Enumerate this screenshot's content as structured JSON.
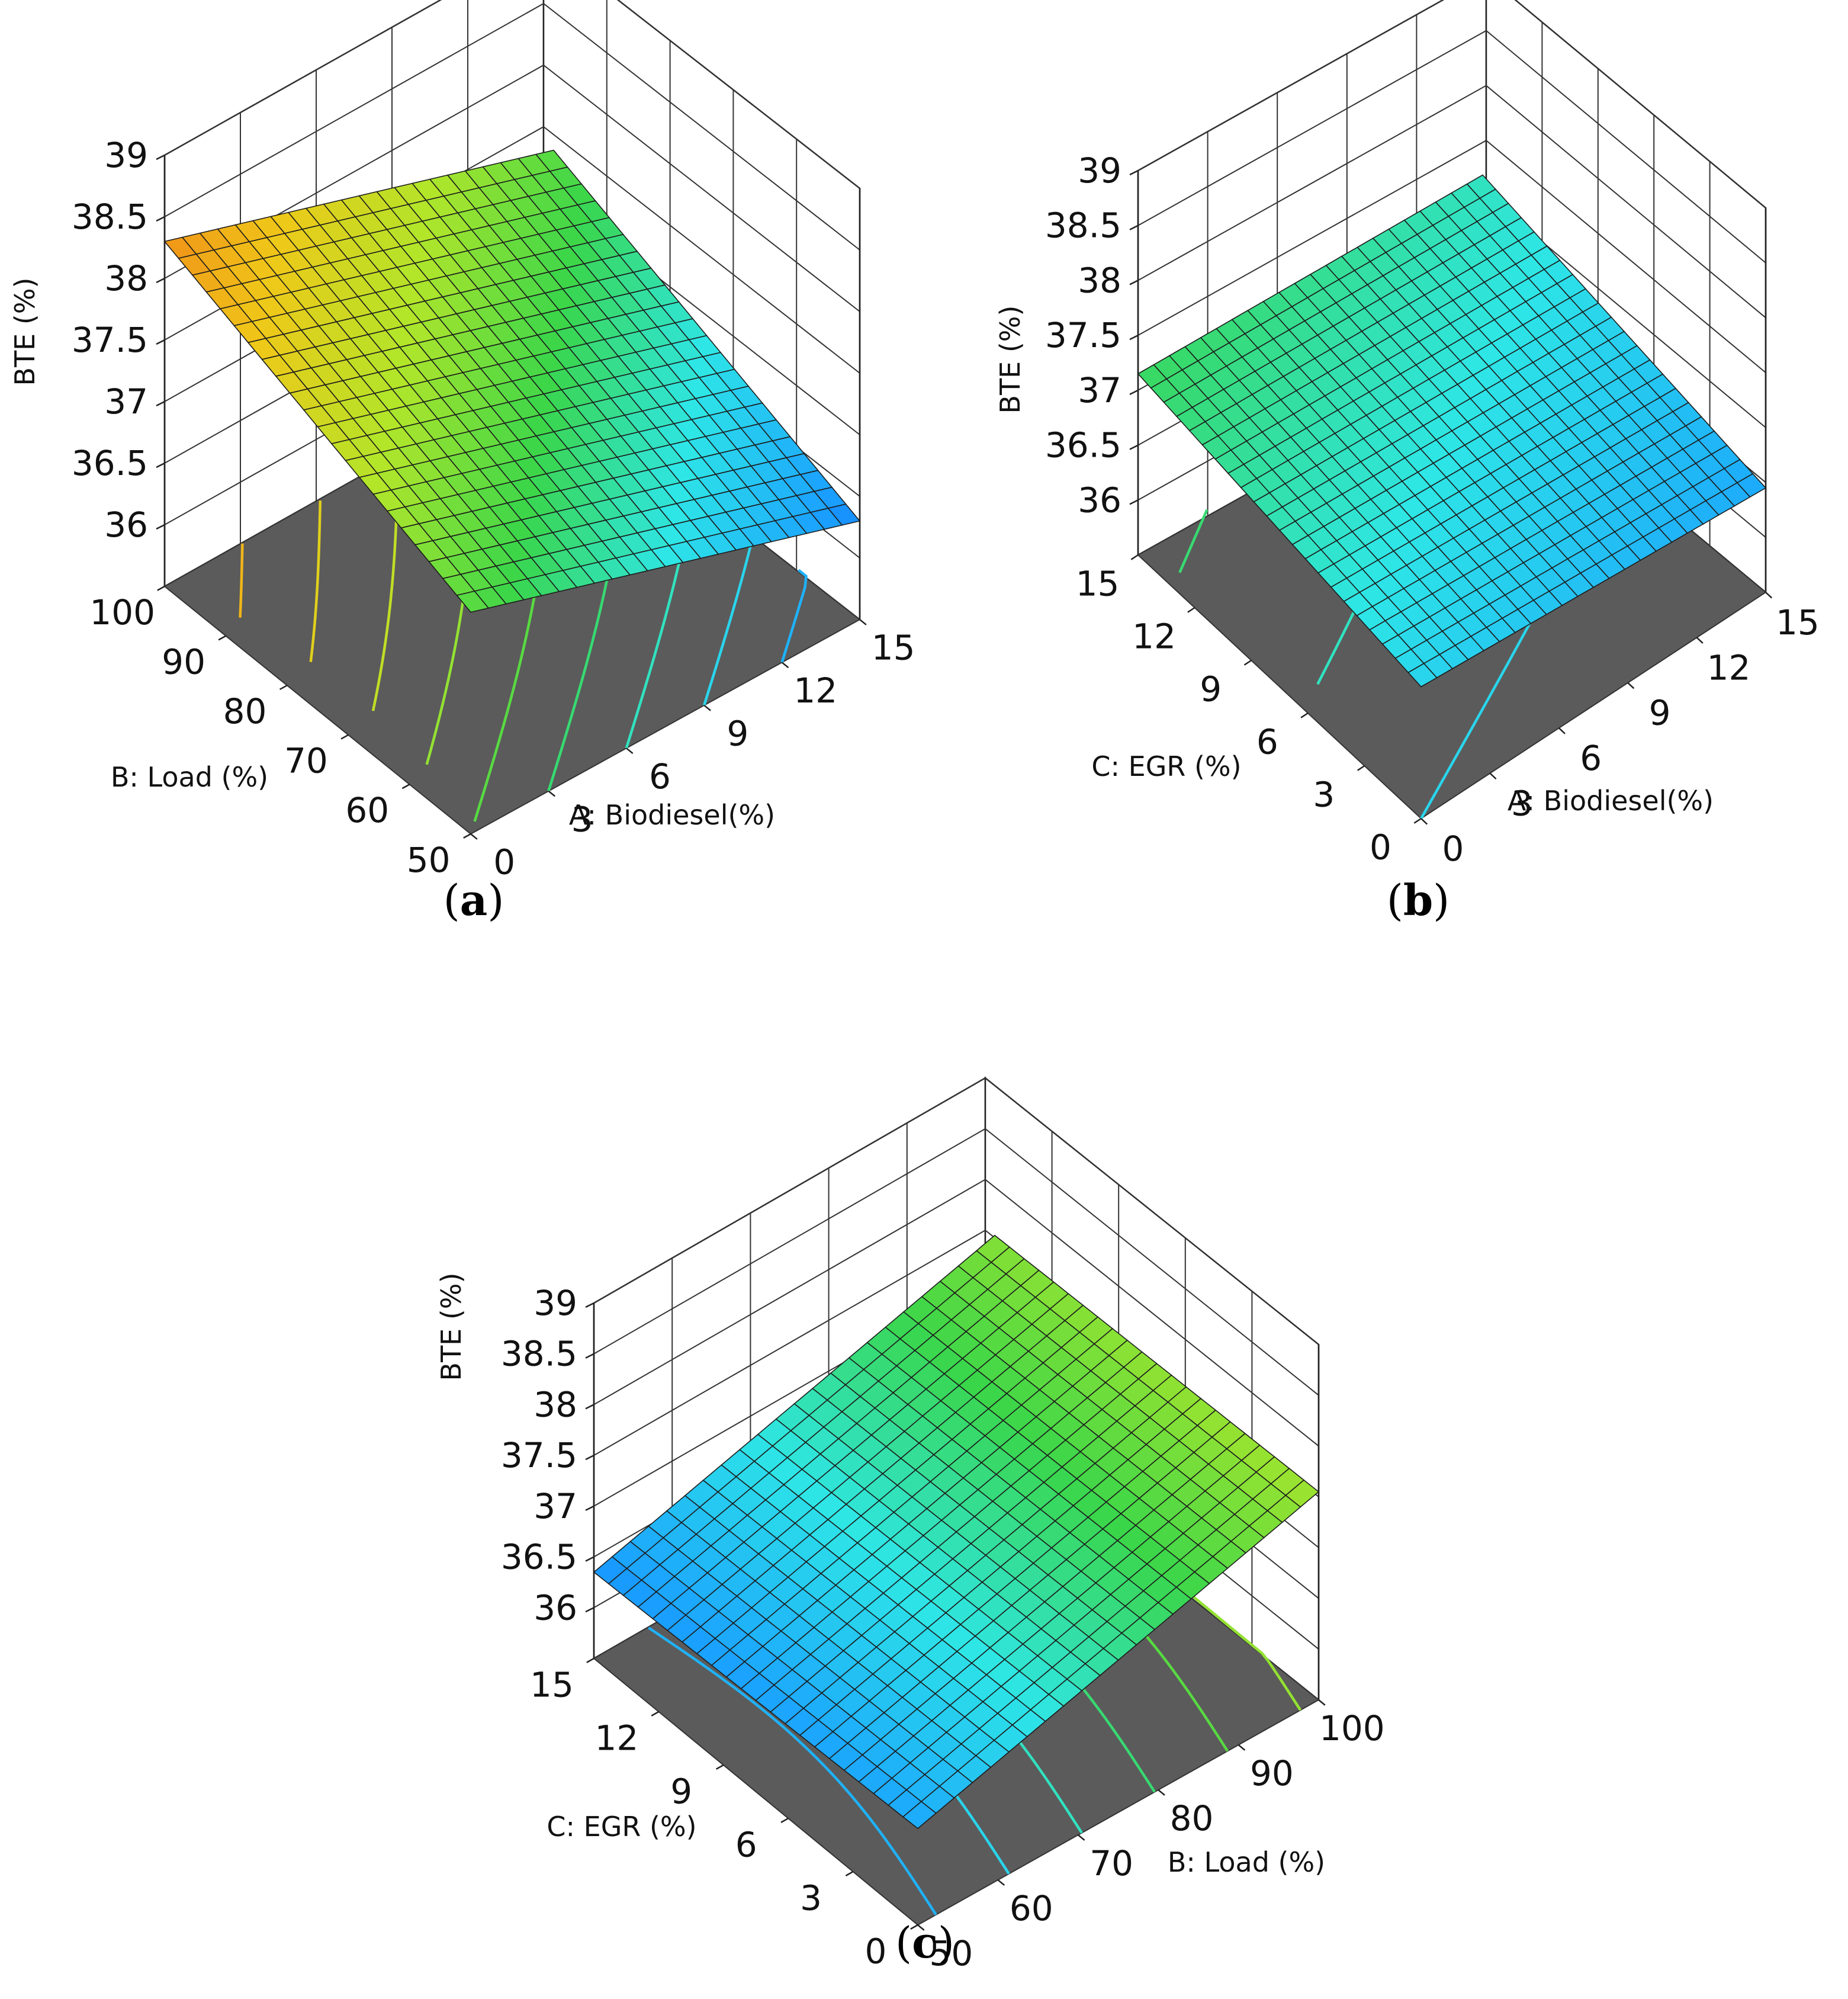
{
  "chart_data": [
    {
      "type": "surface3d",
      "panel_label": "a",
      "xlabel": "A: Biodiesel(%)",
      "ylabel": "B: Load (%)",
      "zlabel": "BTE (%)",
      "x_ticks": [
        "0",
        "3",
        "6",
        "9",
        "12",
        "15"
      ],
      "y_ticks": [
        "50",
        "60",
        "70",
        "80",
        "90",
        "100"
      ],
      "z_ticks": [
        "36",
        "36.5",
        "37",
        "37.5",
        "38",
        "38.5",
        "39"
      ],
      "xlim": [
        0,
        15
      ],
      "ylim": [
        50,
        100
      ],
      "zlim": [
        35.5,
        39
      ],
      "corner_values": [
        {
          "x": 0,
          "y": 50,
          "z": 37.3
        },
        {
          "x": 15,
          "y": 50,
          "z": 36.3
        },
        {
          "x": 0,
          "y": 100,
          "z": 38.3
        },
        {
          "x": 15,
          "y": 100,
          "z": 37.3
        }
      ],
      "colormap": [
        "#0a3cf0",
        "#1aa0ff",
        "#2ee6e6",
        "#3ad64a",
        "#b0e62a",
        "#f0c818",
        "#f08018"
      ]
    },
    {
      "type": "surface3d",
      "panel_label": "b",
      "xlabel": "A: Biodiesel(%)",
      "ylabel": "C: EGR (%)",
      "zlabel": "BTE (%)",
      "x_ticks": [
        "0",
        "3",
        "6",
        "9",
        "12",
        "15"
      ],
      "y_ticks": [
        "0",
        "3",
        "6",
        "9",
        "12",
        "15"
      ],
      "z_ticks": [
        "36",
        "36.5",
        "37",
        "37.5",
        "38",
        "38.5",
        "39"
      ],
      "xlim": [
        0,
        15
      ],
      "ylim": [
        0,
        15
      ],
      "zlim": [
        35.5,
        39
      ],
      "corner_values": [
        {
          "x": 0,
          "y": 0,
          "z": 36.7
        },
        {
          "x": 15,
          "y": 0,
          "z": 36.45
        },
        {
          "x": 0,
          "y": 15,
          "z": 37.15
        },
        {
          "x": 15,
          "y": 15,
          "z": 36.9
        }
      ],
      "colormap": [
        "#0a3cf0",
        "#1aa0ff",
        "#2ee6e6",
        "#3ad64a",
        "#b0e62a",
        "#f0c818",
        "#f08018"
      ]
    },
    {
      "type": "surface3d",
      "panel_label": "c",
      "xlabel": "B: Load (%)",
      "ylabel": "C: EGR (%)",
      "zlabel": "BTE (%)",
      "x_ticks": [
        "50",
        "60",
        "70",
        "80",
        "90",
        "100"
      ],
      "y_ticks": [
        "0",
        "3",
        "6",
        "9",
        "12",
        "15"
      ],
      "z_ticks": [
        "36",
        "36.5",
        "37",
        "37.5",
        "38",
        "38.5",
        "39"
      ],
      "xlim": [
        50,
        100
      ],
      "ylim": [
        0,
        15
      ],
      "zlim": [
        35.5,
        39
      ],
      "corner_values": [
        {
          "x": 50,
          "y": 0,
          "z": 36.45
        },
        {
          "x": 100,
          "y": 0,
          "z": 37.55
        },
        {
          "x": 50,
          "y": 15,
          "z": 36.35
        },
        {
          "x": 100,
          "y": 15,
          "z": 37.45
        }
      ],
      "colormap": [
        "#0a3cf0",
        "#1aa0ff",
        "#2ee6e6",
        "#3ad64a",
        "#b0e62a",
        "#f0c818",
        "#f08018"
      ]
    }
  ]
}
